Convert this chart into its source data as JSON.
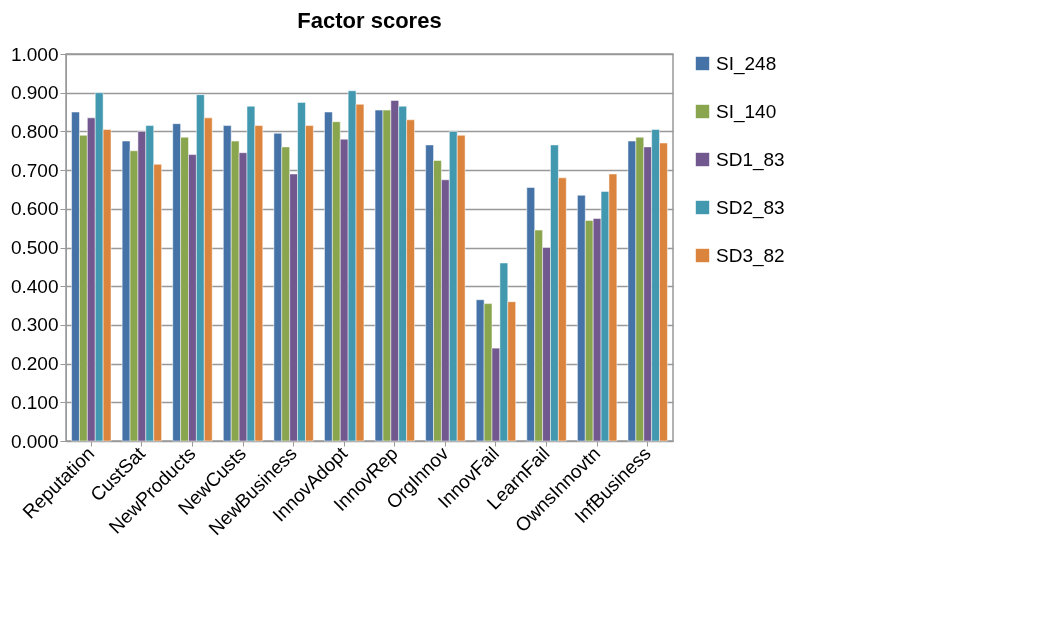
{
  "chart_data": {
    "type": "bar",
    "title": "Factor scores",
    "categories": [
      "Reputation",
      "CustSat",
      "NewProducts",
      "NewCusts",
      "NewBusiness",
      "InnovAdopt",
      "InnovRep",
      "OrgInnov",
      "InnovFail",
      "LearnFail",
      "OwnsInnovtn",
      "InfBusiness"
    ],
    "series": [
      {
        "name": "SI_248",
        "color": "#4572a7",
        "values": [
          0.85,
          0.775,
          0.82,
          0.815,
          0.795,
          0.85,
          0.855,
          0.765,
          0.365,
          0.655,
          0.635,
          0.775
        ]
      },
      {
        "name": "SI_140",
        "color": "#89a54e",
        "values": [
          0.79,
          0.75,
          0.785,
          0.775,
          0.76,
          0.825,
          0.855,
          0.725,
          0.355,
          0.545,
          0.57,
          0.785
        ]
      },
      {
        "name": "SD1_83",
        "color": "#71588f",
        "values": [
          0.835,
          0.8,
          0.74,
          0.745,
          0.69,
          0.78,
          0.88,
          0.675,
          0.24,
          0.5,
          0.575,
          0.76
        ]
      },
      {
        "name": "SD2_83",
        "color": "#4198af",
        "values": [
          0.9,
          0.815,
          0.895,
          0.865,
          0.875,
          0.905,
          0.865,
          0.8,
          0.46,
          0.765,
          0.645,
          0.805
        ]
      },
      {
        "name": "SD3_82",
        "color": "#db843d",
        "values": [
          0.805,
          0.715,
          0.835,
          0.815,
          0.815,
          0.87,
          0.83,
          0.79,
          0.36,
          0.68,
          0.69,
          0.77
        ]
      }
    ],
    "ylim": [
      0,
      1
    ],
    "yticks": [
      {
        "value": 0,
        "label": "0.000"
      },
      {
        "value": 0.1,
        "label": "0.100"
      },
      {
        "value": 0.2,
        "label": "0.200"
      },
      {
        "value": 0.3,
        "label": "0.300"
      },
      {
        "value": 0.4,
        "label": "0.400"
      },
      {
        "value": 0.5,
        "label": "0.500"
      },
      {
        "value": 0.6,
        "label": "0.600"
      },
      {
        "value": 0.7,
        "label": "0.700"
      },
      {
        "value": 0.8,
        "label": "0.800"
      },
      {
        "value": 0.9,
        "label": "0.900"
      },
      {
        "value": 1,
        "label": "1.000"
      }
    ],
    "grid": true,
    "legend": "right"
  }
}
